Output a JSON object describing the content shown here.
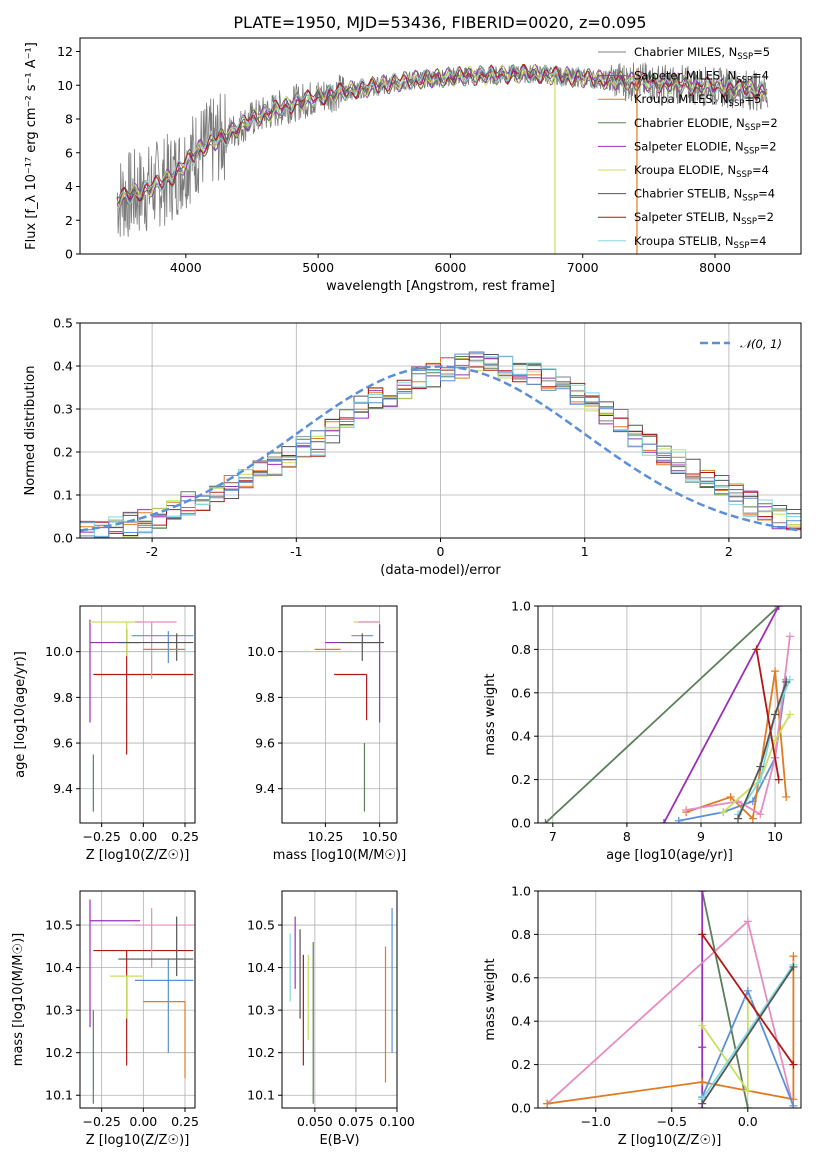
{
  "title": "PLATE=1950, MJD=53436, FIBERID=0020, z=0.095",
  "model_colors": [
    "#808080",
    "#9b30b8",
    "#e07b22",
    "#5a7f5a",
    "#9b30b8",
    "#c8e060",
    "#555555",
    "#b01818",
    "#80d8e0"
  ],
  "chart_data": [
    {
      "id": "spectrum",
      "type": "line",
      "title": "PLATE=1950, MJD=53436, FIBERID=0020, z=0.095",
      "xlabel": "wavelength [Angstrom, rest frame]",
      "ylabel": "Flux [f_λ 10⁻¹⁷ erg cm⁻² s⁻¹ A⁻¹]",
      "xlim": [
        3200,
        8650
      ],
      "ylim": [
        0,
        12.8
      ],
      "xticks": [
        4000,
        5000,
        6000,
        7000,
        8000
      ],
      "yticks": [
        0,
        2,
        4,
        6,
        8,
        10,
        12
      ],
      "grid": false,
      "legend_position": "right",
      "continuum_x": [
        3500,
        3700,
        3900,
        4100,
        4300,
        4500,
        4800,
        5100,
        5400,
        5700,
        6000,
        6300,
        6600,
        6900,
        7200,
        7400,
        7800,
        8200,
        8400
      ],
      "continuum_y": [
        3.3,
        3.8,
        4.6,
        6.2,
        7.0,
        8.0,
        8.9,
        9.5,
        9.9,
        10.3,
        10.5,
        10.6,
        10.7,
        10.5,
        10.3,
        10.2,
        10.0,
        9.8,
        9.6
      ],
      "series": [
        {
          "name": "Chabrier MILES, N_SSP=5",
          "color": "#808080"
        },
        {
          "name": "Salpeter MILES, N_SSP=4",
          "color": "#9b30b8"
        },
        {
          "name": "Kroupa MILES, N_SSP=5",
          "color": "#e07b22"
        },
        {
          "name": "Chabrier ELODIE, N_SSP=2",
          "color": "#5a7f5a"
        },
        {
          "name": "Salpeter ELODIE, N_SSP=2",
          "color": "#9b30b8"
        },
        {
          "name": "Kroupa ELODIE, N_SSP=4",
          "color": "#c8e060"
        },
        {
          "name": "Chabrier STELIB, N_SSP=4",
          "color": "#555555"
        },
        {
          "name": "Salpeter STELIB, N_SSP=2",
          "color": "#b01818"
        },
        {
          "name": "Kroupa STELIB, N_SSP=4",
          "color": "#80d8e0"
        }
      ],
      "legend": [
        {
          "pre": "Chabrier MILES, N",
          "sub": "SSP",
          "post": "=5",
          "color": "#808080"
        },
        {
          "pre": "Salpeter MILES, N",
          "sub": "SSP",
          "post": "=4",
          "color": "#9b30b8"
        },
        {
          "pre": "Kroupa MILES, N",
          "sub": "SSP",
          "post": "=5",
          "color": "#e07b22"
        },
        {
          "pre": "Chabrier ELODIE, N",
          "sub": "SSP",
          "post": "=2",
          "color": "#5a7f5a"
        },
        {
          "pre": "Salpeter ELODIE, N",
          "sub": "SSP",
          "post": "=2",
          "color": "#9b30b8"
        },
        {
          "pre": "Kroupa ELODIE, N",
          "sub": "SSP",
          "post": "=4",
          "color": "#c8e060"
        },
        {
          "pre": "Chabrier STELIB, N",
          "sub": "SSP",
          "post": "=4",
          "color": "#555555"
        },
        {
          "pre": "Salpeter STELIB, N",
          "sub": "SSP",
          "post": "=2",
          "color": "#b01818"
        },
        {
          "pre": "Kroupa STELIB, N",
          "sub": "SSP",
          "post": "=4",
          "color": "#80d8e0"
        }
      ]
    },
    {
      "id": "residuals",
      "type": "histogram",
      "xlabel": "(data-model)/error",
      "ylabel": "Normed distribution",
      "xlim": [
        -2.5,
        2.5
      ],
      "ylim": [
        0,
        0.5
      ],
      "xticks": [
        -2,
        -1,
        0,
        1,
        2
      ],
      "yticks": [
        0.0,
        0.1,
        0.2,
        0.3,
        0.4,
        0.5
      ],
      "grid": true,
      "bin_width": 0.1,
      "bins_start": -2.5,
      "reference_curve": {
        "name": "𝒩(0, 1)",
        "mean": 0,
        "sigma": 1,
        "color": "#5b8fd6"
      },
      "approx_series_heights": [
        0.02,
        0.02,
        0.025,
        0.03,
        0.04,
        0.05,
        0.07,
        0.08,
        0.09,
        0.1,
        0.12,
        0.14,
        0.15,
        0.17,
        0.19,
        0.21,
        0.22,
        0.25,
        0.27,
        0.3,
        0.32,
        0.33,
        0.35,
        0.37,
        0.38,
        0.39,
        0.4,
        0.41,
        0.4,
        0.4,
        0.39,
        0.38,
        0.37,
        0.35,
        0.33,
        0.31,
        0.29,
        0.27,
        0.24,
        0.22,
        0.2,
        0.18,
        0.16,
        0.14,
        0.12,
        0.1,
        0.08,
        0.07,
        0.05,
        0.04
      ]
    },
    {
      "id": "age-vs-Z",
      "type": "errorbar",
      "xlabel": "Z [log10(Z/Z☉)]",
      "ylabel": "age [log10(age/yr)]",
      "xlim": [
        -0.38,
        0.31
      ],
      "ylim": [
        9.25,
        10.2
      ],
      "xticks": [
        -0.25,
        0.0,
        0.25
      ],
      "xticklabels": [
        "−0.25",
        "0.00",
        "0.25"
      ],
      "yticks": [
        9.4,
        9.6,
        9.8,
        10.0
      ],
      "grid": true,
      "points": [
        {
          "x": -0.3,
          "xerr": [
            0.0,
            0.0
          ],
          "y": 9.55,
          "yerr": [
            0.25,
            0.0
          ],
          "color": "#5a7f5a"
        },
        {
          "x": -0.32,
          "xerr": [
            0.0,
            0.3
          ],
          "y": 10.04,
          "yerr": [
            0.35,
            0.1
          ],
          "color": "#9b30b8"
        },
        {
          "x": -0.1,
          "xerr": [
            0.2,
            0.4
          ],
          "y": 9.9,
          "yerr": [
            0.35,
            0.2
          ],
          "color": "#b01818"
        },
        {
          "x": -0.1,
          "xerr": [
            0.22,
            0.1
          ],
          "y": 10.13,
          "yerr": [
            0.15,
            0.0
          ],
          "color": "#c8e060"
        },
        {
          "x": 0.05,
          "xerr": [
            0.1,
            0.15
          ],
          "y": 10.13,
          "yerr": [
            0.25,
            0.0
          ],
          "color": "#e88cc0"
        },
        {
          "x": 0.15,
          "xerr": [
            0.22,
            0.15
          ],
          "y": 10.07,
          "yerr": [
            0.12,
            0.02
          ],
          "color": "#5b8fd6"
        },
        {
          "x": 0.2,
          "xerr": [
            0.35,
            0.1
          ],
          "y": 10.04,
          "yerr": [
            0.08,
            0.04
          ],
          "color": "#555555"
        },
        {
          "x": 0.25,
          "xerr": [
            0.25,
            0.0
          ],
          "y": 10.01,
          "yerr": [
            0.0,
            0.0
          ],
          "color": "#e07b22"
        }
      ]
    },
    {
      "id": "age-vs-mass",
      "type": "errorbar",
      "xlabel": "mass [log10(M/M☉)]",
      "ylabel": "",
      "xlim": [
        10.05,
        10.58
      ],
      "ylim": [
        9.25,
        10.2
      ],
      "xticks": [
        10.25,
        10.5
      ],
      "xticklabels": [
        "10.25",
        "10.50"
      ],
      "yticks": [
        9.4,
        9.6,
        9.8,
        10.0
      ],
      "grid": true,
      "points": [
        {
          "x": 10.43,
          "xerr": [
            0.0,
            0.0
          ],
          "y": 9.6,
          "yerr": [
            0.3,
            0.0
          ],
          "color": "#5a7f5a"
        },
        {
          "x": 10.5,
          "xerr": [
            0.25,
            0.0
          ],
          "y": 10.04,
          "yerr": [
            0.35,
            0.08
          ],
          "color": "#9b30b8"
        },
        {
          "x": 10.44,
          "xerr": [
            0.15,
            0.0
          ],
          "y": 9.9,
          "yerr": [
            0.2,
            0.0
          ],
          "color": "#b01818"
        },
        {
          "x": 10.38,
          "xerr": [
            0.0,
            0.12
          ],
          "y": 10.13,
          "yerr": [
            0.0,
            0.0
          ],
          "color": "#c8e060"
        },
        {
          "x": 10.5,
          "xerr": [
            0.1,
            0.0
          ],
          "y": 10.13,
          "yerr": [
            0.0,
            0.0
          ],
          "color": "#e88cc0"
        },
        {
          "x": 10.37,
          "xerr": [
            0.0,
            0.1
          ],
          "y": 10.07,
          "yerr": [
            0.0,
            0.0
          ],
          "color": "#5b8fd6"
        },
        {
          "x": 10.42,
          "xerr": [
            0.1,
            0.1
          ],
          "y": 10.04,
          "yerr": [
            0.08,
            0.04
          ],
          "color": "#555555"
        },
        {
          "x": 10.32,
          "xerr": [
            0.12,
            0.0
          ],
          "y": 10.01,
          "yerr": [
            0.0,
            0.0
          ],
          "color": "#e07b22"
        }
      ]
    },
    {
      "id": "weight-vs-age",
      "type": "line",
      "xlabel": "age [log10(age/yr)]",
      "ylabel": "mass weight",
      "xlim": [
        6.8,
        10.35
      ],
      "ylim": [
        0,
        1.0
      ],
      "xticks": [
        7,
        8,
        9,
        10
      ],
      "yticks": [
        0.0,
        0.2,
        0.4,
        0.6,
        0.8,
        1.0
      ],
      "grid": true,
      "series": [
        {
          "color": "#5a7f5a",
          "x": [
            6.9,
            10.05
          ],
          "y": [
            0.0,
            1.0
          ]
        },
        {
          "color": "#9b30b8",
          "x": [
            8.5,
            10.05
          ],
          "y": [
            0.0,
            1.0
          ]
        },
        {
          "color": "#5b8fd6",
          "x": [
            8.7,
            9.3,
            9.7,
            10.0,
            10.15
          ],
          "y": [
            0.01,
            0.05,
            0.1,
            0.3,
            0.66
          ]
        },
        {
          "color": "#e07b22",
          "x": [
            8.8,
            9.4,
            9.7,
            10.0,
            10.15
          ],
          "y": [
            0.05,
            0.12,
            0.02,
            0.7,
            0.12
          ]
        },
        {
          "color": "#e88cc0",
          "x": [
            8.8,
            9.5,
            9.8,
            10.0,
            10.2
          ],
          "y": [
            0.06,
            0.1,
            0.04,
            0.3,
            0.86
          ]
        },
        {
          "color": "#c8e060",
          "x": [
            9.3,
            9.8,
            10.0,
            10.2
          ],
          "y": [
            0.05,
            0.2,
            0.38,
            0.5
          ]
        },
        {
          "color": "#80d8e0",
          "x": [
            9.5,
            9.8,
            10.0,
            10.2
          ],
          "y": [
            0.04,
            0.2,
            0.5,
            0.66
          ]
        },
        {
          "color": "#555555",
          "x": [
            9.5,
            9.8,
            10.0,
            10.15
          ],
          "y": [
            0.02,
            0.26,
            0.5,
            0.65
          ]
        },
        {
          "color": "#b01818",
          "x": [
            9.75,
            10.05
          ],
          "y": [
            0.8,
            0.2
          ]
        }
      ]
    },
    {
      "id": "mass-vs-Z",
      "type": "errorbar",
      "xlabel": "Z [log10(Z/Z☉)]",
      "ylabel": "mass [log10(M/M☉)]",
      "xlim": [
        -0.38,
        0.31
      ],
      "ylim": [
        10.07,
        10.58
      ],
      "xticks": [
        -0.25,
        0.0,
        0.25
      ],
      "xticklabels": [
        "−0.25",
        "0.00",
        "0.25"
      ],
      "yticks": [
        10.1,
        10.2,
        10.3,
        10.4,
        10.5
      ],
      "grid": true,
      "points": [
        {
          "x": -0.3,
          "xerr": [
            0.0,
            0.0
          ],
          "y": 10.3,
          "yerr": [
            0.22,
            0.0
          ],
          "color": "#5a7f5a"
        },
        {
          "x": -0.32,
          "xerr": [
            0.0,
            0.3
          ],
          "y": 10.51,
          "yerr": [
            0.25,
            0.05
          ],
          "color": "#9b30b8"
        },
        {
          "x": -0.1,
          "xerr": [
            0.2,
            0.4
          ],
          "y": 10.44,
          "yerr": [
            0.27,
            0.0
          ],
          "color": "#b01818"
        },
        {
          "x": -0.1,
          "xerr": [
            0.1,
            0.1
          ],
          "y": 10.38,
          "yerr": [
            0.1,
            0.0
          ],
          "color": "#c8e060"
        },
        {
          "x": 0.05,
          "xerr": [
            0.1,
            0.25
          ],
          "y": 10.5,
          "yerr": [
            0.1,
            0.04
          ],
          "color": "#e88cc0"
        },
        {
          "x": 0.15,
          "xerr": [
            0.2,
            0.15
          ],
          "y": 10.37,
          "yerr": [
            0.17,
            0.05
          ],
          "color": "#5b8fd6"
        },
        {
          "x": 0.2,
          "xerr": [
            0.35,
            0.1
          ],
          "y": 10.42,
          "yerr": [
            0.04,
            0.1
          ],
          "color": "#555555"
        },
        {
          "x": 0.25,
          "xerr": [
            0.25,
            0.0
          ],
          "y": 10.32,
          "yerr": [
            0.18,
            0.0
          ],
          "color": "#e07b22"
        }
      ]
    },
    {
      "id": "mass-vs-ebv",
      "type": "errorbar",
      "xlabel": "E(B-V)",
      "ylabel": "",
      "xlim": [
        0.03,
        0.1
      ],
      "ylim": [
        10.07,
        10.58
      ],
      "xticks": [
        0.05,
        0.075,
        0.1
      ],
      "xticklabels": [
        "0.050",
        "0.075",
        "0.100"
      ],
      "yticks": [
        10.1,
        10.2,
        10.3,
        10.4,
        10.5
      ],
      "grid": true,
      "points": [
        {
          "x": 0.035,
          "xerr": [
            0,
            0
          ],
          "y": 10.4,
          "yerr": [
            0.08,
            0.08
          ],
          "color": "#80d8e0"
        },
        {
          "x": 0.038,
          "xerr": [
            0,
            0
          ],
          "y": 10.42,
          "yerr": [
            0.07,
            0.1
          ],
          "color": "#9b30b8"
        },
        {
          "x": 0.041,
          "xerr": [
            0,
            0
          ],
          "y": 10.39,
          "yerr": [
            0.11,
            0.1
          ],
          "color": "#555555"
        },
        {
          "x": 0.043,
          "xerr": [
            0,
            0
          ],
          "y": 10.3,
          "yerr": [
            0.13,
            0.13
          ],
          "color": "#b01818"
        },
        {
          "x": 0.046,
          "xerr": [
            0,
            0
          ],
          "y": 10.38,
          "yerr": [
            0.15,
            0.05
          ],
          "color": "#c8e060"
        },
        {
          "x": 0.049,
          "xerr": [
            0,
            0
          ],
          "y": 10.28,
          "yerr": [
            0.2,
            0.18
          ],
          "color": "#5a7f5a"
        },
        {
          "x": 0.093,
          "xerr": [
            0,
            0
          ],
          "y": 10.3,
          "yerr": [
            0.17,
            0.15
          ],
          "color": "#e07b22"
        },
        {
          "x": 0.097,
          "xerr": [
            0,
            0
          ],
          "y": 10.38,
          "yerr": [
            0.18,
            0.16
          ],
          "color": "#5b8fd6"
        }
      ]
    },
    {
      "id": "weight-vs-Z",
      "type": "line",
      "xlabel": "Z [log10(Z/Z☉)]",
      "ylabel": "mass weight",
      "xlim": [
        -1.38,
        0.35
      ],
      "ylim": [
        0,
        1.0
      ],
      "xticks": [
        -1.0,
        -0.5,
        0.0
      ],
      "xticklabels": [
        "−1.0",
        "−0.5",
        "0.0"
      ],
      "yticks": [
        0.0,
        0.2,
        0.4,
        0.6,
        0.8,
        1.0
      ],
      "grid": true,
      "series": [
        {
          "color": "#5a7f5a",
          "x": [
            -0.3,
            0.0
          ],
          "y": [
            1.0,
            0.0
          ]
        },
        {
          "color": "#9b30b8",
          "x": [
            -0.3,
            -0.3,
            -0.3
          ],
          "y": [
            1.0,
            0.28,
            0.0
          ]
        },
        {
          "color": "#e88cc0",
          "x": [
            -1.32,
            0.0,
            0.3
          ],
          "y": [
            0.02,
            0.86,
            0.0
          ]
        },
        {
          "color": "#e07b22",
          "x": [
            -1.32,
            -0.3,
            0.3,
            0.3
          ],
          "y": [
            0.02,
            0.12,
            0.04,
            0.7
          ]
        },
        {
          "color": "#5b8fd6",
          "x": [
            -0.3,
            0.0,
            0.3
          ],
          "y": [
            0.05,
            0.54,
            0.01
          ]
        },
        {
          "color": "#c8e060",
          "x": [
            -0.3,
            0.0,
            0.0
          ],
          "y": [
            0.38,
            0.08,
            0.5
          ]
        },
        {
          "color": "#80d8e0",
          "x": [
            -0.3,
            0.3
          ],
          "y": [
            0.04,
            0.66
          ]
        },
        {
          "color": "#555555",
          "x": [
            -0.3,
            0.3
          ],
          "y": [
            0.02,
            0.65
          ]
        },
        {
          "color": "#b01818",
          "x": [
            -0.3,
            0.3
          ],
          "y": [
            0.8,
            0.2
          ]
        }
      ]
    }
  ]
}
